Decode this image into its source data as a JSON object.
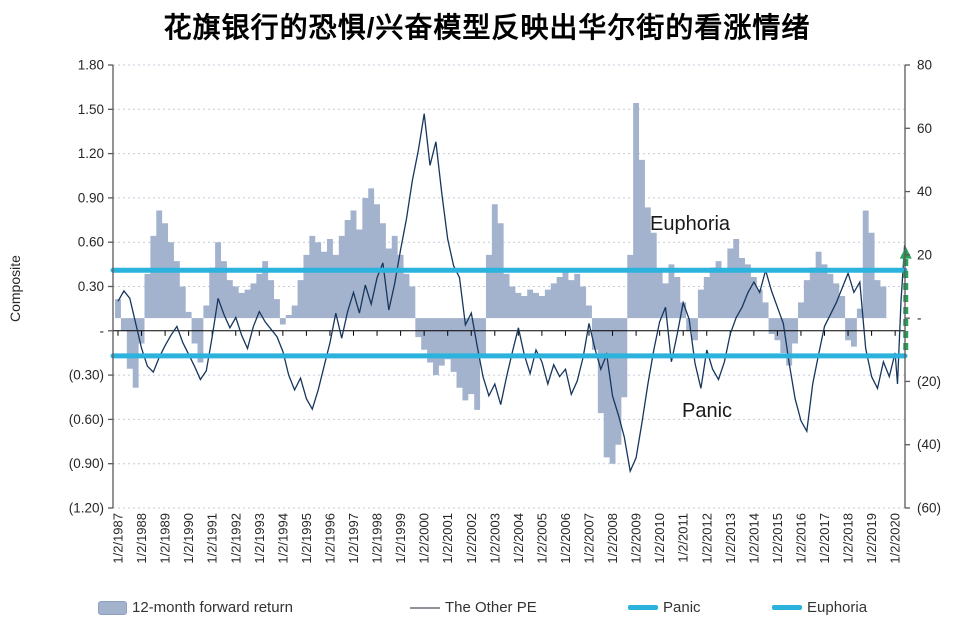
{
  "title": "花旗银行的恐惧/兴奋模型反映出华尔街的看涨情绪",
  "left_axis": {
    "title": "Composite",
    "min": -1.2,
    "max": 1.8,
    "tick_values": [
      1.8,
      1.5,
      1.2,
      0.9,
      0.6,
      0.3,
      0,
      -0.3,
      -0.6,
      -0.9,
      -1.2
    ],
    "tick_labels": [
      "1.80",
      "1.50",
      "1.20",
      "0.90",
      "0.60",
      "0.30",
      "-",
      "(0.30)",
      "(0.60)",
      "(0.90)",
      "(1.20)"
    ]
  },
  "right_axis": {
    "min": -60,
    "max": 80,
    "tick_values": [
      80,
      60,
      40,
      20,
      0,
      -20,
      -40,
      -60
    ],
    "tick_labels": [
      "80",
      "60",
      "40",
      "20",
      "-",
      "(20)",
      "(40)",
      "(60)"
    ]
  },
  "x_axis": {
    "year_start": 1987,
    "labels": [
      "1/2/1987",
      "1/2/1988",
      "1/2/1989",
      "1/2/1990",
      "1/2/1991",
      "1/2/1992",
      "1/2/1993",
      "1/2/1994",
      "1/2/1995",
      "1/2/1996",
      "1/2/1997",
      "1/2/1998",
      "1/2/1999",
      "1/2/2000",
      "1/2/2001",
      "1/2/2002",
      "1/2/2003",
      "1/2/2004",
      "1/2/2005",
      "1/2/2006",
      "1/2/2007",
      "1/2/2008",
      "1/2/2009",
      "1/2/2010",
      "1/2/2011",
      "1/2/2012",
      "1/2/2013",
      "1/2/2014",
      "1/2/2015",
      "1/2/2016",
      "1/2/2017",
      "1/2/2018",
      "1/2/2019",
      "1/2/2020"
    ]
  },
  "annotations": {
    "euphoria": "Euphoria",
    "panic": "Panic"
  },
  "legend": [
    {
      "label": "12-month forward return",
      "type": "area"
    },
    {
      "label": "The Other PE",
      "type": "line"
    },
    {
      "label": "Panic",
      "type": "band"
    },
    {
      "label": "Euphoria",
      "type": "band"
    }
  ],
  "colors": {
    "area": "#a4b3cd",
    "line": "#17365d",
    "legend_line": "#8f9399",
    "threshold": "#2bb3dd",
    "arrow": "#2ca05a",
    "grid": "#c3cbd9",
    "axis": "#595959",
    "zero_line": "#000000",
    "text": "#262626"
  },
  "chart_data": {
    "type": "combo",
    "title": "花旗银行的恐惧/兴奋模型反映出华尔街的看涨情绪",
    "left_axis_label": "Composite",
    "left_ylim": [
      -1.2,
      1.8
    ],
    "right_ylim": [
      -60,
      80
    ],
    "x_range": [
      1987.0,
      2020.45
    ],
    "grid": "dotted-horizontal",
    "legend_position": "bottom",
    "series": [
      {
        "name": "12-month forward return",
        "type": "area",
        "axis": "right",
        "unit": "%",
        "x_start": 1987.0,
        "x_step": 0.25,
        "values": [
          6,
          -4,
          -16,
          -22,
          -8,
          14,
          26,
          34,
          30,
          24,
          18,
          10,
          2,
          -8,
          -14,
          4,
          16,
          24,
          18,
          12,
          10,
          8,
          9,
          11,
          14,
          18,
          12,
          6,
          -2,
          1,
          4,
          12,
          20,
          26,
          24,
          21,
          25,
          20,
          26,
          31,
          34,
          28,
          38,
          41,
          36,
          30,
          22,
          26,
          20,
          14,
          10,
          -6,
          -10,
          -14,
          -18,
          -15,
          -13,
          -17,
          -22,
          -26,
          -24,
          -29,
          -12,
          20,
          36,
          30,
          14,
          10,
          8,
          7,
          9,
          8,
          7,
          9,
          11,
          13,
          15,
          12,
          14,
          10,
          4,
          -10,
          -30,
          -44,
          -46,
          -40,
          -25,
          20,
          68,
          50,
          35,
          27,
          15,
          11,
          17,
          13,
          5,
          -4,
          -7,
          9,
          13,
          16,
          18,
          15,
          22,
          25,
          19,
          17,
          13,
          9,
          5,
          -5,
          -7,
          -11,
          -15,
          -8,
          5,
          12,
          16,
          21,
          17,
          14,
          11,
          7,
          -7,
          -9,
          3,
          34,
          27,
          12,
          10
        ]
      },
      {
        "name": "The Other PE",
        "type": "line",
        "axis": "left",
        "x_start": 1987.0,
        "x_step": 0.25,
        "values": [
          0.2,
          0.27,
          0.22,
          0.05,
          -0.12,
          -0.24,
          -0.28,
          -0.18,
          -0.1,
          -0.03,
          0.03,
          -0.08,
          -0.16,
          -0.24,
          -0.33,
          -0.27,
          -0.04,
          0.22,
          0.11,
          0.02,
          0.09,
          -0.03,
          -0.12,
          0.03,
          0.13,
          0.06,
          0.01,
          -0.04,
          -0.14,
          -0.3,
          -0.4,
          -0.32,
          -0.46,
          -0.53,
          -0.4,
          -0.24,
          -0.08,
          0.12,
          -0.05,
          0.13,
          0.26,
          0.12,
          0.31,
          0.18,
          0.36,
          0.46,
          0.14,
          0.32,
          0.55,
          0.76,
          1.02,
          1.22,
          1.47,
          1.12,
          1.28,
          0.93,
          0.62,
          0.44,
          0.36,
          0.04,
          0.12,
          -0.1,
          -0.31,
          -0.44,
          -0.36,
          -0.5,
          -0.31,
          -0.14,
          0.02,
          -0.16,
          -0.29,
          -0.13,
          -0.21,
          -0.36,
          -0.23,
          -0.31,
          -0.26,
          -0.43,
          -0.34,
          -0.18,
          0.05,
          -0.12,
          -0.26,
          -0.16,
          -0.44,
          -0.57,
          -0.72,
          -0.95,
          -0.86,
          -0.62,
          -0.36,
          -0.13,
          0.06,
          0.16,
          -0.21,
          -0.02,
          0.19,
          0.08,
          -0.22,
          -0.39,
          -0.13,
          -0.26,
          -0.33,
          -0.21,
          -0.02,
          0.09,
          0.16,
          0.26,
          0.33,
          0.26,
          0.41,
          0.27,
          0.16,
          0.05,
          -0.22,
          -0.46,
          -0.61,
          -0.68,
          -0.36,
          -0.16,
          0.03,
          0.11,
          0.19,
          0.29,
          0.39,
          0.26,
          0.33,
          -0.12,
          -0.31,
          -0.39,
          -0.21,
          -0.31
        ],
        "extra_points": [
          [
            2020.0,
            -0.15
          ],
          [
            2020.1,
            -0.36
          ],
          [
            2020.25,
            0.2
          ],
          [
            2020.4,
            0.58
          ]
        ]
      }
    ],
    "reference_lines": [
      {
        "name": "Panic",
        "axis": "left",
        "value": -0.17
      },
      {
        "name": "Euphoria",
        "axis": "left",
        "value": 0.41
      }
    ],
    "trend_arrow": {
      "axis": "left",
      "x_year": 2020.45,
      "from": -0.13,
      "to": 0.57,
      "direction": "up"
    }
  }
}
